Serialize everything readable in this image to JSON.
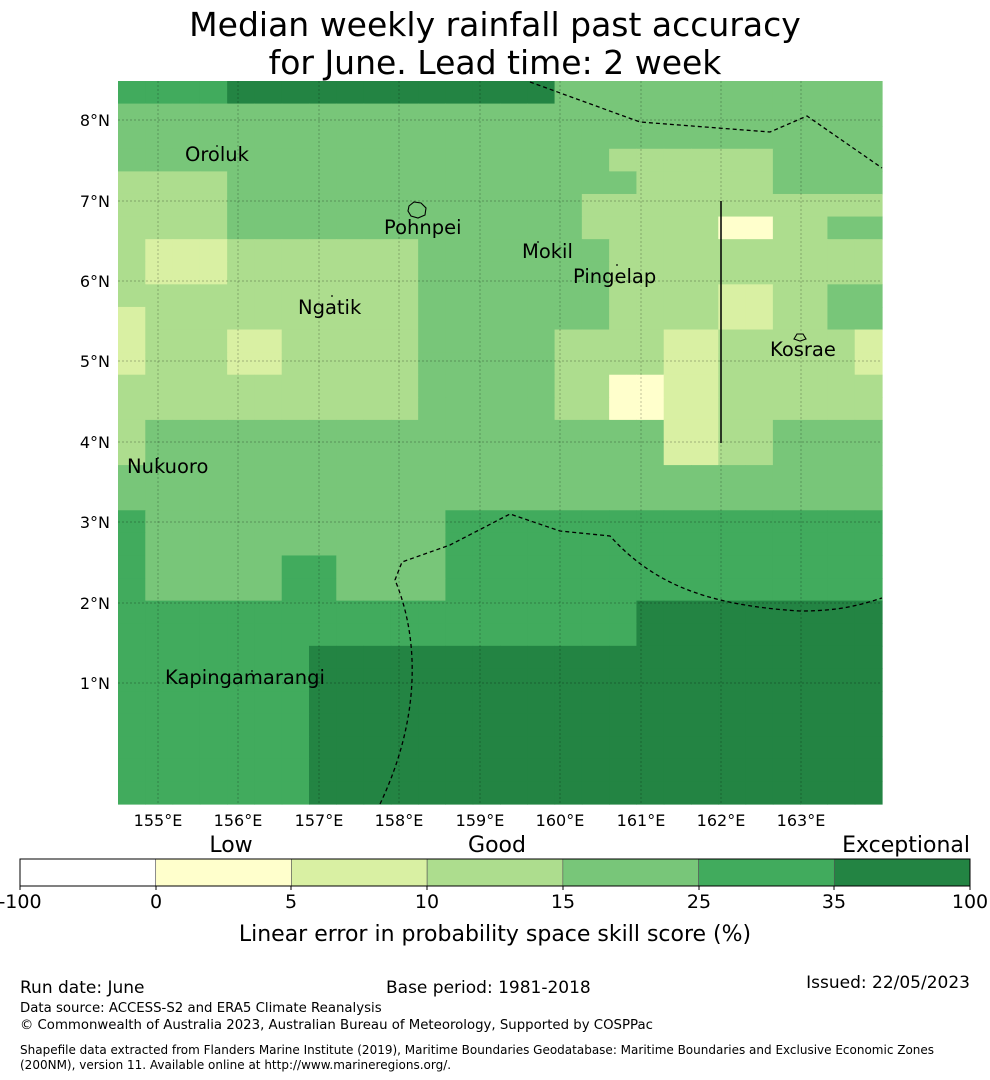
{
  "header": {
    "title_line1": "Median weekly rainfall past accuracy",
    "title_line2": "for June. Lead time: 2 week"
  },
  "map": {
    "lat_labels": [
      "8°N",
      "7°N",
      "6°N",
      "5°N",
      "4°N",
      "3°N",
      "2°N",
      "1°N"
    ],
    "lon_labels": [
      "155°E",
      "156°E",
      "157°E",
      "158°E",
      "159°E",
      "160°E",
      "161°E",
      "162°E",
      "163°E"
    ],
    "places": [
      {
        "name": "Oroluk"
      },
      {
        "name": "Pohnpei"
      },
      {
        "name": "Mokil"
      },
      {
        "name": "Pingelap"
      },
      {
        "name": "Ngatik"
      },
      {
        "name": "Kosrae"
      },
      {
        "name": "Nukuoro"
      },
      {
        "name": "Kapingamarangi"
      }
    ],
    "palette": [
      "#ffffff",
      "#ffffcc",
      "#d9f0a3",
      "#addd8e",
      "#78c679",
      "#41ab5d",
      "#238443"
    ],
    "rows": [
      "5555666666666666444444444444",
      "4444444444444444444444444444",
      "4444444444444444444444444444",
      "4444444444444444443333334444",
      "3333444444444444444333334444",
      "3333444444444444433333333333",
      "3333444444444444433333113344",
      "3222333333344444443333333333",
      "3222333333344444443333333333",
      "3333333333344444443333223344",
      "2333333333344444443333223344",
      "2333223333344444333322333332",
      "2333223333344444333322333332",
      "3333333333344444331122333333",
      "3333333333344444331122333333",
      "3444444444444444444422334444",
      "3444444444444444444422334444",
      "4444444444444444444444444444",
      "4444444444444444444444444444",
      "5444444444445555555555555555",
      "5444444444445555555555555555",
      "5444445544445555555555555555",
      "5444445544445555555555555555",
      "5555555555555555555666666666",
      "5555555555555555555666666666",
      "5555555666666666666666666666",
      "5555555666666666666666666666",
      "5555555666666666666666666666",
      "5555555666666666666666666666",
      "5555555666666666666666666666",
      "5555555666666666666666666666",
      "5555555666666666666666666666"
    ]
  },
  "legend": {
    "category_labels": [
      "Low",
      "Good",
      "Exceptional"
    ],
    "tick_labels": [
      "-100",
      "0",
      "5",
      "10",
      "15",
      "25",
      "35",
      "100"
    ],
    "axis_label": "Linear error in probability space skill score (%)"
  },
  "footer": {
    "run_date": "Run date: June",
    "base_period": "Base period: 1981-2018",
    "issued": "Issued: 22/05/2023",
    "data_source": "Data source: ACCESS-S2 and ERA5 Climate Reanalysis",
    "copyright": "© Commonwealth of Australia 2023, Australian Bureau of Meteorology, Supported by COSPPac",
    "shapefile_line1": "Shapefile data extracted from Flanders Marine Institute (2019), Maritime Boundaries Geodatabase: Maritime Boundaries and Exclusive Economic Zones",
    "shapefile_line2": "(200NM), version 11. Available online at http://www.marineregions.org/."
  }
}
